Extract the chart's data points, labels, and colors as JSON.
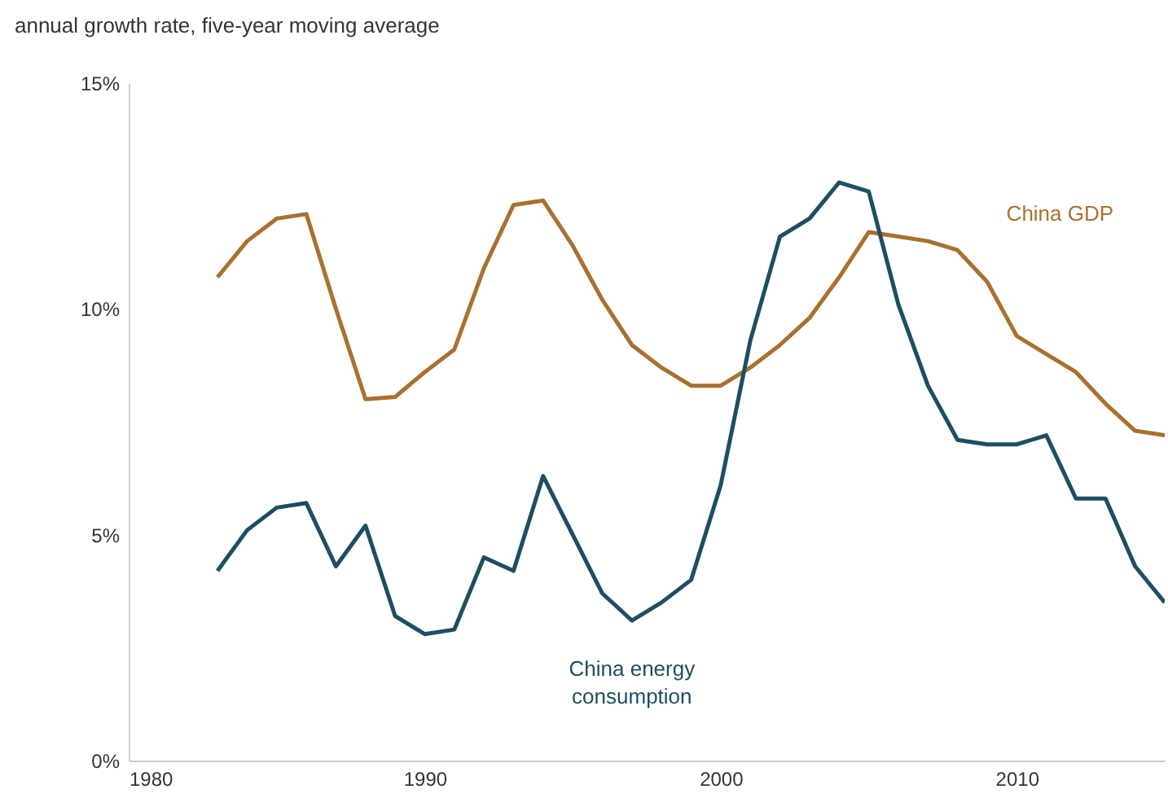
{
  "chart_data": {
    "type": "line",
    "ylabel": "annual growth rate, five-year moving average",
    "x": [
      1983,
      1984,
      1985,
      1986,
      1987,
      1988,
      1989,
      1990,
      1991,
      1992,
      1993,
      1994,
      1995,
      1996,
      1997,
      1998,
      1999,
      2000,
      2001,
      2002,
      2003,
      2004,
      2005,
      2006,
      2007,
      2008,
      2009,
      2010,
      2011,
      2012,
      2013,
      2014,
      2015
    ],
    "series": [
      {
        "name": "China GDP",
        "color": "#a8712f",
        "values": [
          10.7,
          11.5,
          12.0,
          12.1,
          10.0,
          8.0,
          8.05,
          8.6,
          9.1,
          10.9,
          12.3,
          12.4,
          11.4,
          10.2,
          9.2,
          8.7,
          8.3,
          8.3,
          8.7,
          9.2,
          9.8,
          10.7,
          11.7,
          11.6,
          11.5,
          11.3,
          10.6,
          9.4,
          9.0,
          8.6,
          7.9,
          7.3,
          7.2
        ]
      },
      {
        "name": "China energy consumption",
        "color": "#1d4e63",
        "values": [
          4.2,
          5.1,
          5.6,
          5.7,
          4.3,
          5.2,
          3.2,
          2.8,
          2.9,
          4.5,
          4.2,
          6.3,
          5.0,
          3.7,
          3.1,
          3.5,
          4.0,
          6.1,
          9.3,
          11.6,
          12.0,
          12.8,
          12.6,
          10.1,
          8.3,
          7.1,
          7.0,
          7.0,
          7.2,
          5.8,
          5.8,
          4.3,
          3.5
        ]
      }
    ],
    "xlim": [
      1980,
      2015
    ],
    "xticks": [
      1980,
      1990,
      2000,
      2010
    ],
    "ylim": [
      0,
      15
    ],
    "yticks": [
      {
        "value": 0,
        "label": "0%"
      },
      {
        "value": 5,
        "label": "5%"
      },
      {
        "value": 10,
        "label": "10%"
      },
      {
        "value": 15,
        "label": "15%"
      }
    ],
    "grid": false,
    "legend": false,
    "marker": "none",
    "line_style": "solid"
  }
}
